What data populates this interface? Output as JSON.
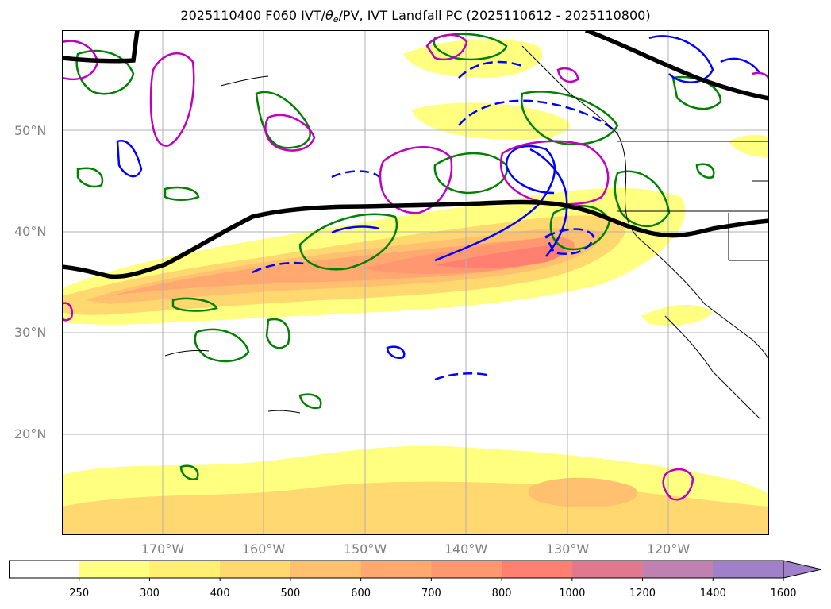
{
  "title": {
    "prefix": "2025110400 F060 IVT/",
    "theta": "θ",
    "theta_sub": "e",
    "suffix": "/PV, IVT Landfall PC (2025110612 - 2025110800)"
  },
  "map": {
    "lat_labels": [
      "50°N",
      "40°N",
      "30°N",
      "20°N"
    ],
    "lon_labels": [
      "170°W",
      "160°W",
      "150°W",
      "140°W",
      "130°W",
      "120°W"
    ],
    "colors": {
      "ocean_bg": "#ffffff",
      "ivt_250": "#ffff80",
      "ivt_300": "#fff070",
      "ivt_400": "#ffd870",
      "ivt_500": "#ffc070",
      "ivt_700": "#ff9870",
      "ivt_800": "#ff8070",
      "jet_line": "#000000",
      "theta_contour": "#0000ff",
      "pv_contour": "#008000",
      "pc_contour": "#c000c0",
      "coastline": "#000000",
      "grid": "#b0b0b0"
    }
  },
  "colorbar": {
    "ticks": [
      "250",
      "300",
      "400",
      "500",
      "600",
      "700",
      "800",
      "1000",
      "1200",
      "1400",
      "1600"
    ],
    "bins": [
      "#ffffff",
      "#ffff80",
      "#fff070",
      "#ffd870",
      "#ffc070",
      "#ffa870",
      "#ff9870",
      "#ff8070",
      "#e07890",
      "#c080b0",
      "#a080c8"
    ],
    "extend": "max"
  }
}
